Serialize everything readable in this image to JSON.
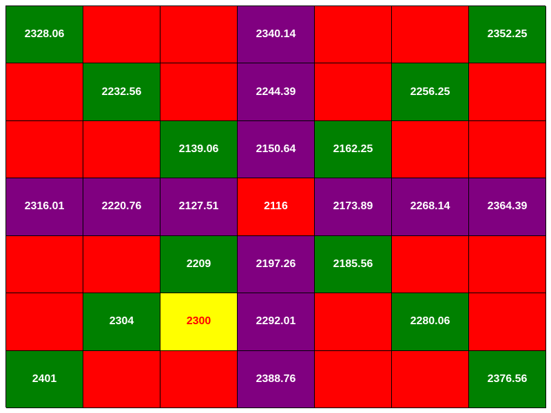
{
  "palette": {
    "green": "#008000",
    "red": "#ff0000",
    "purple": "#800080",
    "yellow": "#ffff00",
    "text_light": "#ffffff",
    "text_red": "#ff0000"
  },
  "board": {
    "rows": [
      [
        {
          "color": "green",
          "value": "2328.06"
        },
        {
          "color": "red",
          "value": ""
        },
        {
          "color": "red",
          "value": ""
        },
        {
          "color": "purple",
          "value": "2340.14"
        },
        {
          "color": "red",
          "value": ""
        },
        {
          "color": "red",
          "value": ""
        },
        {
          "color": "green",
          "value": "2352.25"
        }
      ],
      [
        {
          "color": "red",
          "value": ""
        },
        {
          "color": "green",
          "value": "2232.56"
        },
        {
          "color": "red",
          "value": ""
        },
        {
          "color": "purple",
          "value": "2244.39"
        },
        {
          "color": "red",
          "value": ""
        },
        {
          "color": "green",
          "value": "2256.25"
        },
        {
          "color": "red",
          "value": ""
        }
      ],
      [
        {
          "color": "red",
          "value": ""
        },
        {
          "color": "red",
          "value": ""
        },
        {
          "color": "green",
          "value": "2139.06"
        },
        {
          "color": "purple",
          "value": "2150.64"
        },
        {
          "color": "green",
          "value": "2162.25"
        },
        {
          "color": "red",
          "value": ""
        },
        {
          "color": "red",
          "value": ""
        }
      ],
      [
        {
          "color": "purple",
          "value": "2316.01"
        },
        {
          "color": "purple",
          "value": "2220.76"
        },
        {
          "color": "purple",
          "value": "2127.51"
        },
        {
          "color": "red",
          "value": "2116"
        },
        {
          "color": "purple",
          "value": "2173.89"
        },
        {
          "color": "purple",
          "value": "2268.14"
        },
        {
          "color": "purple",
          "value": "2364.39"
        }
      ],
      [
        {
          "color": "red",
          "value": ""
        },
        {
          "color": "red",
          "value": ""
        },
        {
          "color": "green",
          "value": "2209"
        },
        {
          "color": "purple",
          "value": "2197.26"
        },
        {
          "color": "green",
          "value": "2185.56"
        },
        {
          "color": "red",
          "value": ""
        },
        {
          "color": "red",
          "value": ""
        }
      ],
      [
        {
          "color": "red",
          "value": ""
        },
        {
          "color": "green",
          "value": "2304"
        },
        {
          "color": "yellow",
          "value": "2300",
          "text_color": "text_red"
        },
        {
          "color": "purple",
          "value": "2292.01"
        },
        {
          "color": "red",
          "value": ""
        },
        {
          "color": "green",
          "value": "2280.06"
        },
        {
          "color": "red",
          "value": ""
        }
      ],
      [
        {
          "color": "green",
          "value": "2401"
        },
        {
          "color": "red",
          "value": ""
        },
        {
          "color": "red",
          "value": ""
        },
        {
          "color": "purple",
          "value": "2388.76"
        },
        {
          "color": "red",
          "value": ""
        },
        {
          "color": "red",
          "value": ""
        },
        {
          "color": "green",
          "value": "2376.56"
        }
      ]
    ]
  }
}
